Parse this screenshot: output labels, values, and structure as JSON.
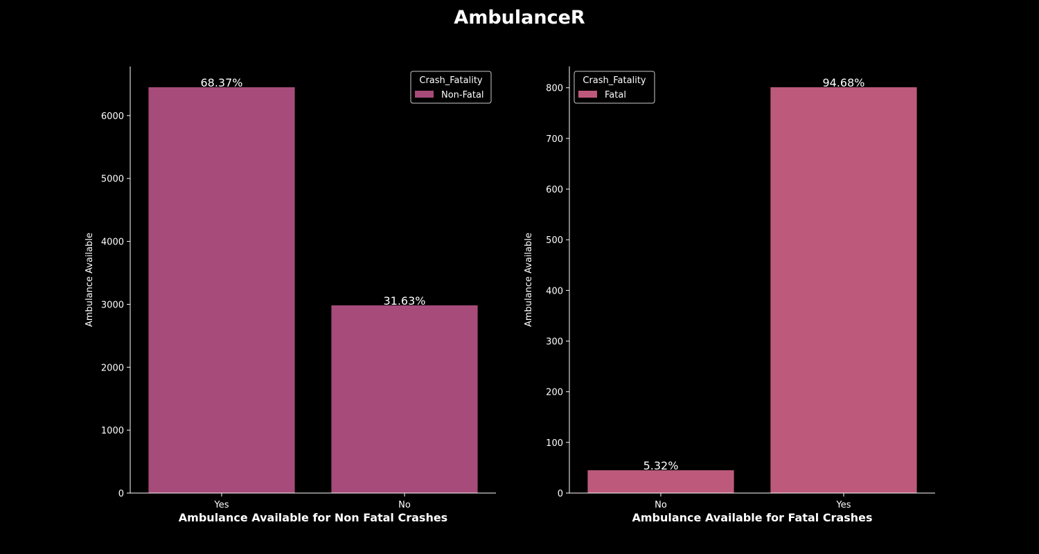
{
  "figure": {
    "title": "AmbulanceR"
  },
  "chart_data": [
    {
      "type": "bar",
      "title": "",
      "xlabel": "Ambulance Available for Non Fatal Crashes",
      "ylabel": "Ambulance Available",
      "categories": [
        "Yes",
        "No"
      ],
      "series": [
        {
          "name": "Non-Fatal",
          "values": [
            6450,
            2984
          ],
          "color": "#a64b7a"
        }
      ],
      "data_labels": [
        "68.37%",
        "31.63%"
      ],
      "ylim": [
        0,
        6780
      ],
      "yticks": [
        0,
        1000,
        2000,
        3000,
        4000,
        5000,
        6000
      ],
      "legend": {
        "title": "Crash_Fatality",
        "placement": "upper right"
      },
      "grid": false
    },
    {
      "type": "bar",
      "title": "",
      "xlabel": "Ambulance Available for Fatal Crashes",
      "ylabel": "Ambulance Available",
      "categories": [
        "No",
        "Yes"
      ],
      "series": [
        {
          "name": "Fatal",
          "values": [
            45,
            801
          ],
          "color": "#bd5a7c"
        }
      ],
      "data_labels": [
        "5.32%",
        "94.68%"
      ],
      "ylim": [
        0,
        842
      ],
      "yticks": [
        0,
        100,
        200,
        300,
        400,
        500,
        600,
        700,
        800
      ],
      "legend": {
        "title": "Crash_Fatality",
        "placement": "upper left"
      },
      "grid": false
    }
  ]
}
